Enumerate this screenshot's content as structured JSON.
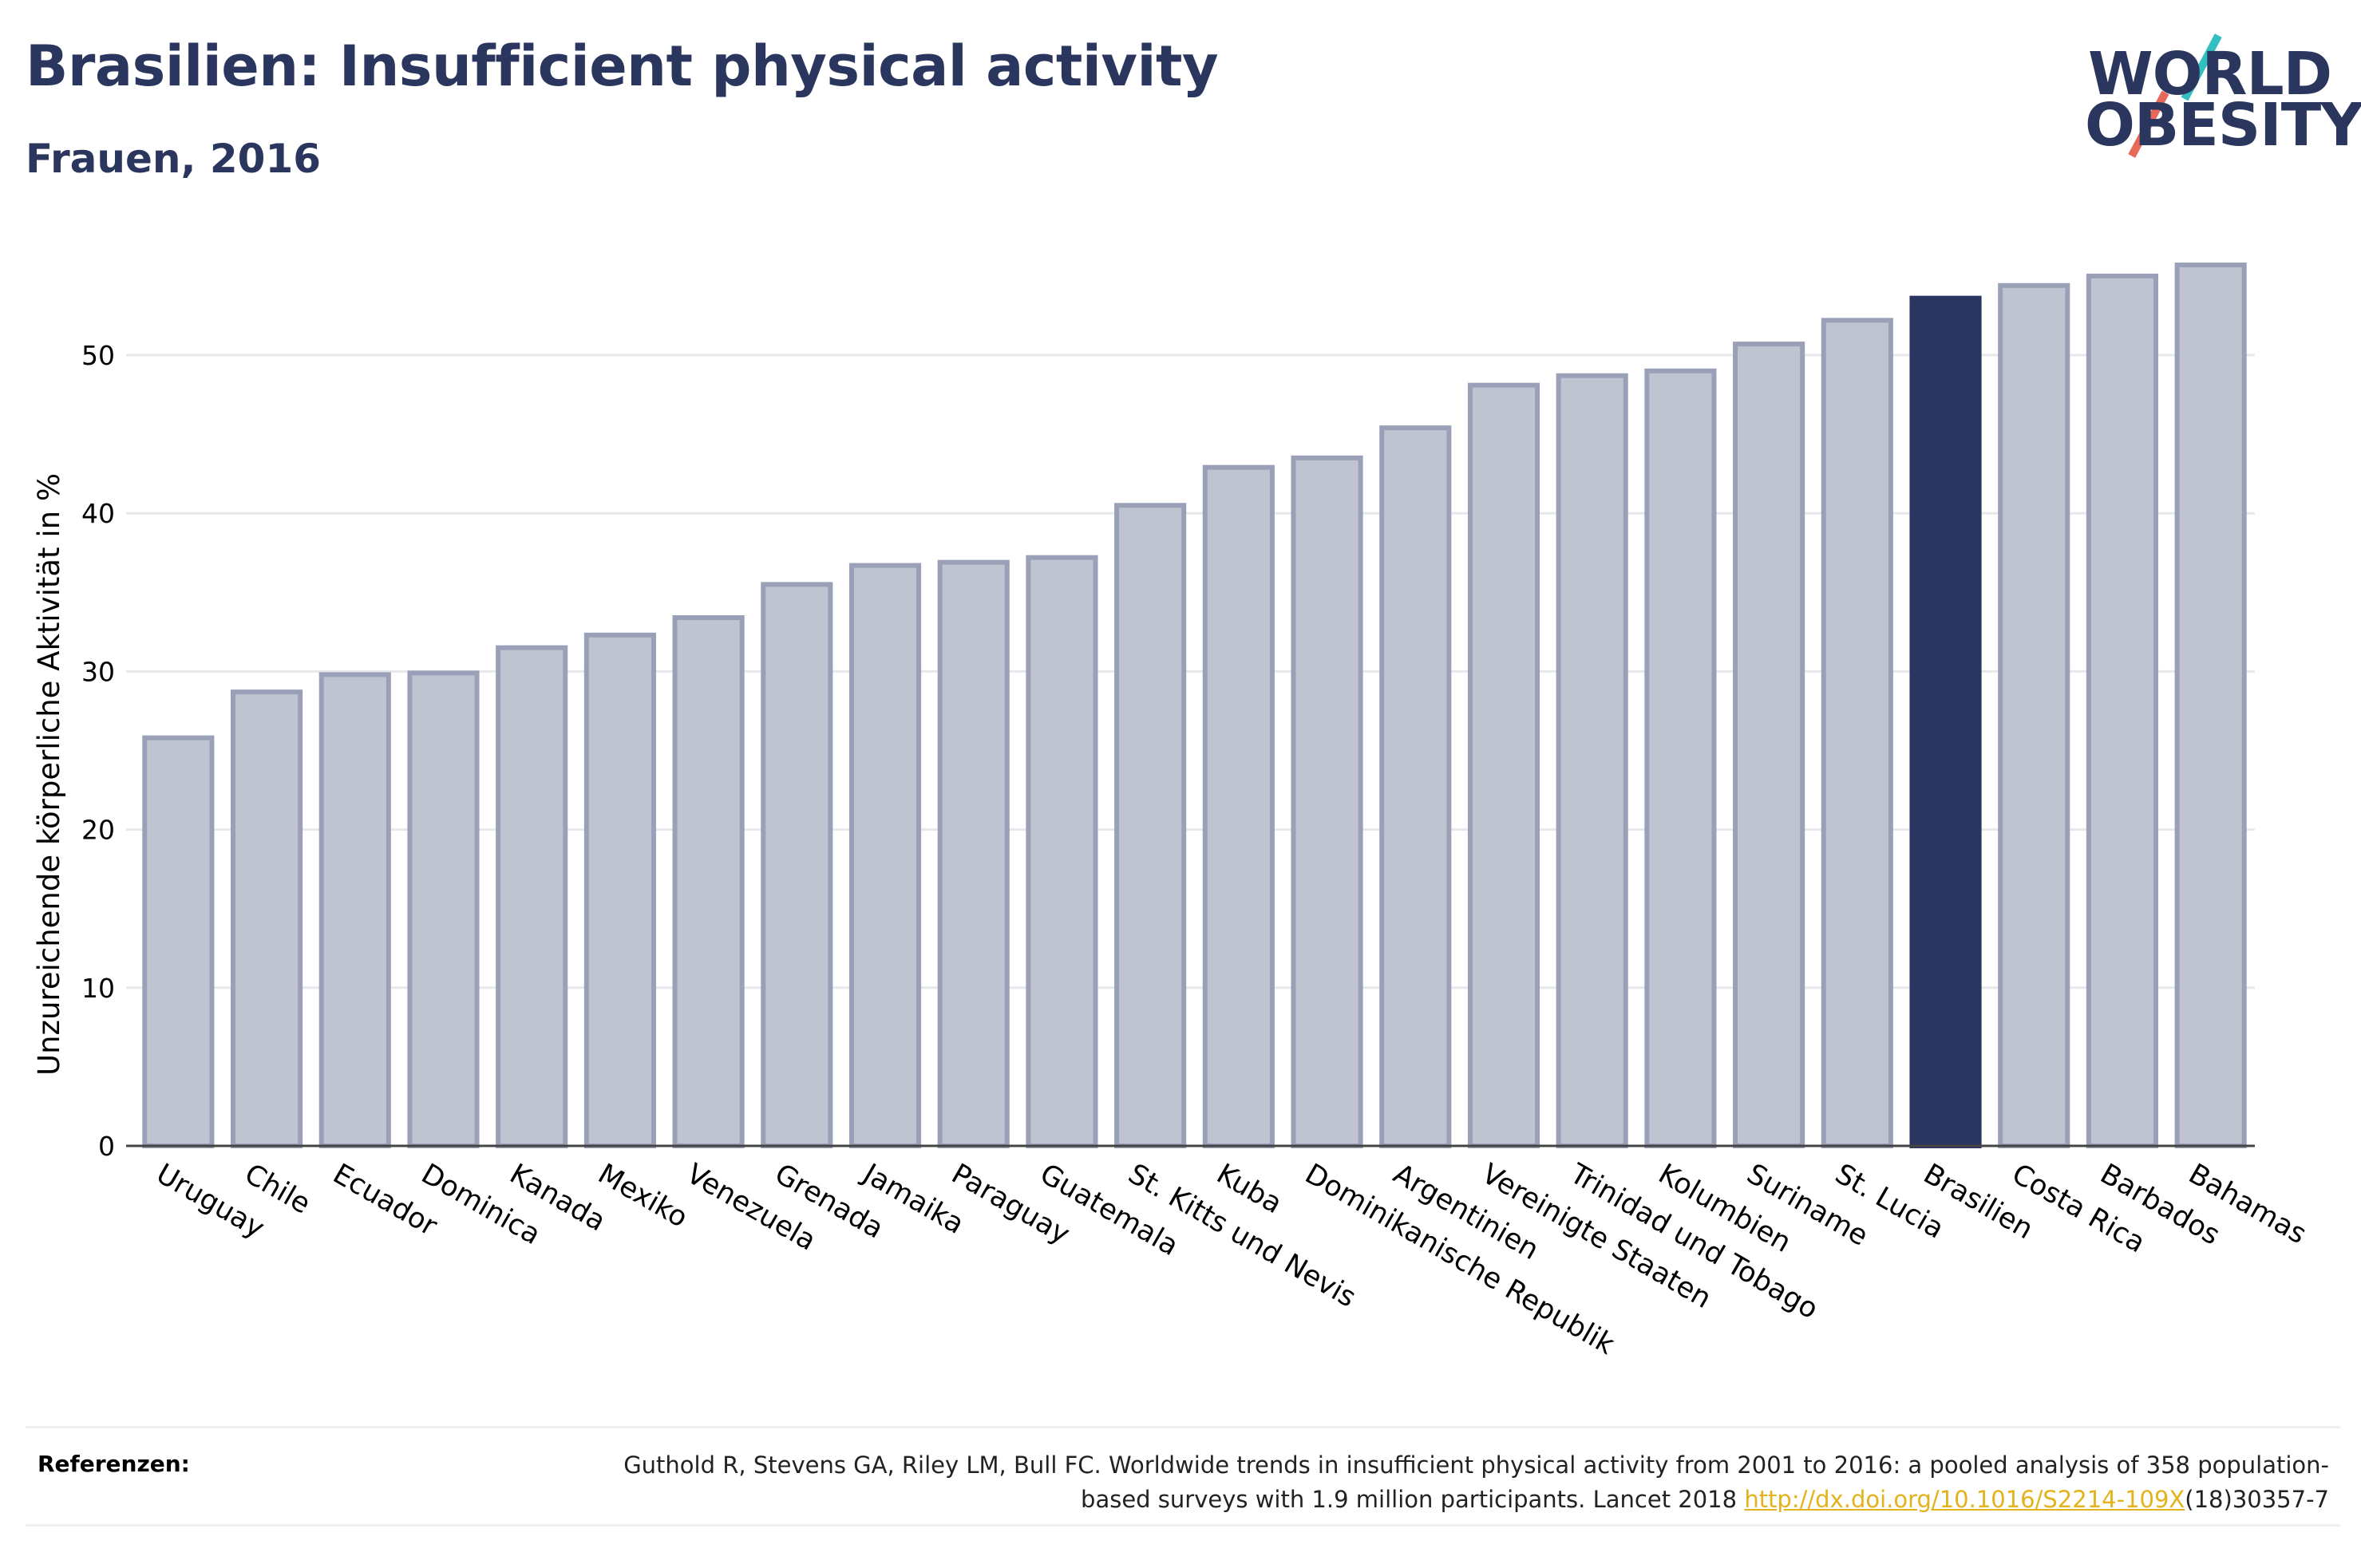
{
  "header": {
    "title": "Brasilien: Insufficient physical activity",
    "subtitle": "Frauen, 2016"
  },
  "logo": {
    "line1": "WORLD",
    "line2": "OBESITY"
  },
  "chart_data": {
    "type": "bar",
    "title": "Brasilien: Insufficient physical activity",
    "subtitle": "Frauen, 2016",
    "xlabel": "",
    "ylabel": "Unzureichende körperliche Aktivität in %",
    "ylim": [
      0,
      58
    ],
    "yticks": [
      0,
      10,
      20,
      30,
      40,
      50
    ],
    "grid": true,
    "highlight": "Brasilien",
    "colors": {
      "default": "#c0c3d0",
      "default_edge": "#9aa0b8",
      "highlight": "#2a3560"
    },
    "categories": [
      "Uruguay",
      "Chile",
      "Ecuador",
      "Dominica",
      "Kanada",
      "Mexiko",
      "Venezuela",
      "Grenada",
      "Jamaika",
      "Paraguay",
      "Guatemala",
      "St. Kitts und Nevis",
      "Kuba",
      "Dominikanische Republik",
      "Argentinien",
      "Vereinigte Staaten",
      "Trinidad und Tobago",
      "Kolumbien",
      "Suriname",
      "St. Lucia",
      "Brasilien",
      "Costa Rica",
      "Barbados",
      "Bahamas"
    ],
    "values": [
      25.8,
      28.7,
      29.8,
      29.9,
      31.5,
      32.3,
      33.4,
      35.5,
      36.7,
      36.9,
      37.2,
      40.5,
      42.9,
      43.5,
      45.4,
      48.1,
      48.7,
      49.0,
      50.7,
      52.2,
      53.6,
      54.4,
      55.0,
      55.7
    ]
  },
  "references": {
    "label": "Referenzen:",
    "text_part1": "Guthold R, Stevens GA, Riley LM, Bull FC. Worldwide trends in insufficient physical activity from 2001 to 2016: a pooled analysis of 358 population-based surveys with 1.9 million participants. Lancet 2018 ",
    "link": "http://dx.doi.org/10.1016/S2214-109X",
    "text_part2": "(18)30357-7"
  }
}
